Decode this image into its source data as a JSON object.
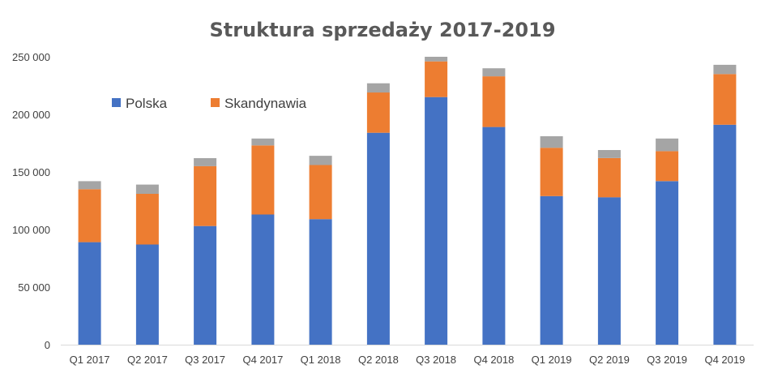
{
  "chart_data": {
    "type": "bar",
    "stacked": true,
    "title": "Struktura sprzedaży 2017-2019",
    "xlabel": "",
    "ylabel": "",
    "ylim": [
      0,
      250000
    ],
    "yticks": [
      "0",
      "50 000",
      "100 000",
      "150 000",
      "200 000",
      "250 000"
    ],
    "ytick_values": [
      0,
      50000,
      100000,
      150000,
      200000,
      250000
    ],
    "grid": false,
    "legend_placement": "top-left",
    "categories": [
      "Q1 2017",
      "Q2 2017",
      "Q3 2017",
      "Q4 2017",
      "Q1 2018",
      "Q2 2018",
      "Q3 2018",
      "Q4 2018",
      "Q1 2019",
      "Q2 2019",
      "Q3 2019",
      "Q4 2019"
    ],
    "series": [
      {
        "name": "Polska",
        "color": "#4472C4",
        "values": [
          89000,
          87000,
          103000,
          113000,
          109000,
          184000,
          215000,
          189000,
          129000,
          128000,
          142000,
          191000
        ]
      },
      {
        "name": "Skandynawia",
        "color": "#ED7D31",
        "values": [
          46000,
          44000,
          52000,
          60000,
          47000,
          35000,
          31000,
          44000,
          42000,
          34000,
          26000,
          44000
        ]
      },
      {
        "color": "#A5A5A5",
        "values": [
          7000,
          8000,
          7000,
          6000,
          8000,
          8000,
          4000,
          7000,
          10000,
          7000,
          11000,
          8000
        ]
      }
    ]
  }
}
